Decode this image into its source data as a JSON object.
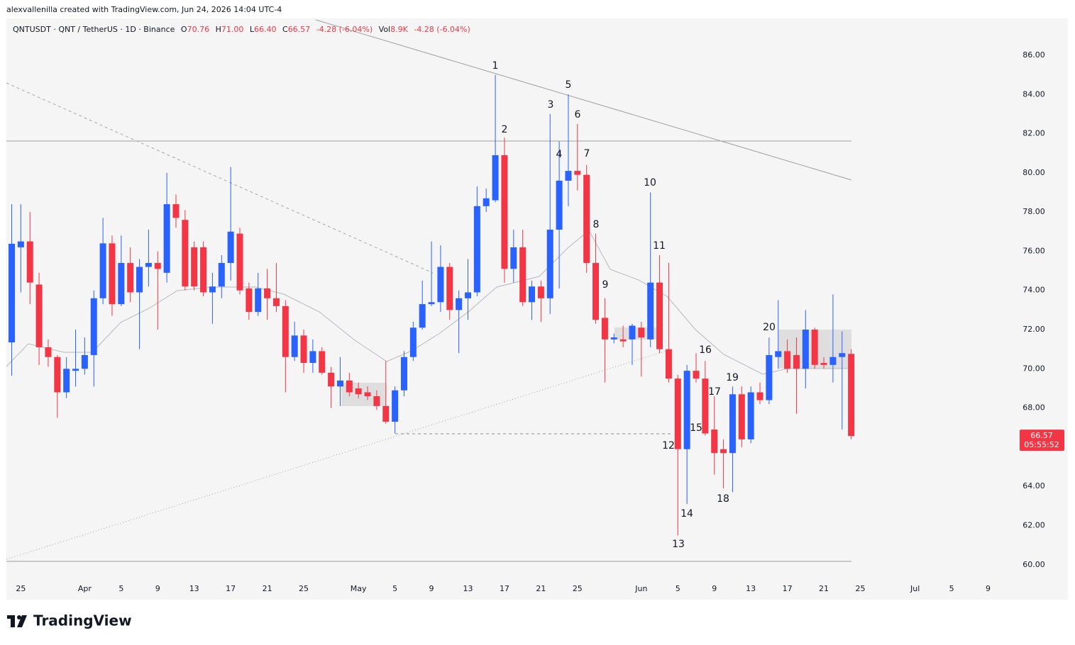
{
  "credit": "alexvallenilla created with TradingView.com, Jun 24, 2026 14:04 UTC-4",
  "brand": "TradingView",
  "chart_data": {
    "type": "candlestick",
    "legend": {
      "symbol": "QNTUSDT · QNT / TetherUS · 1D · Binance",
      "fields": [
        {
          "label": "O",
          "value": "70.76"
        },
        {
          "label": "H",
          "value": "71.00"
        },
        {
          "label": "L",
          "value": "66.40"
        },
        {
          "label": "C",
          "value": "66.57"
        }
      ],
      "change": "-4.28 (-6.04%)",
      "volume_label": "Vol",
      "volume": "8.9K",
      "volume_change": "-4.28 (-6.04%)"
    },
    "countdown": "05:55:52",
    "up_color": "#2962ff",
    "down_color": "#f23645",
    "categories": [
      null,
      "25",
      null,
      null,
      null,
      null,
      null,
      null,
      "Apr",
      null,
      null,
      null,
      "5",
      null,
      null,
      null,
      "9",
      null,
      null,
      null,
      "13",
      null,
      null,
      null,
      "17",
      null,
      null,
      null,
      "21",
      null,
      null,
      null,
      "25",
      null,
      null,
      null,
      null,
      null,
      "May",
      null,
      null,
      null,
      "5",
      null,
      null,
      null,
      "9",
      null,
      null,
      null,
      "13",
      null,
      null,
      null,
      "17",
      null,
      null,
      null,
      "21",
      null,
      null,
      null,
      "25",
      null,
      null,
      null,
      null,
      null,
      null,
      "Jun",
      null,
      null,
      null,
      "5",
      null,
      null,
      null,
      "9",
      null,
      null,
      null,
      "13",
      null,
      null,
      null,
      "17",
      null,
      null,
      null,
      "21",
      null,
      null,
      null,
      "25",
      null,
      null,
      null,
      null,
      null,
      "Jul",
      null,
      null,
      null,
      "5",
      null,
      null,
      null,
      "9"
    ],
    "open": [
      71.35,
      76.2,
      76.5,
      74.3,
      71.1,
      70.6,
      68.8,
      69.9,
      70.0,
      70.7,
      73.6,
      76.4,
      73.3,
      75.4,
      73.9,
      75.2,
      75.4,
      74.9,
      78.4,
      77.6,
      76.2,
      76.2,
      73.9,
      74.2,
      75.4,
      76.9,
      74.1,
      72.9,
      74.1,
      73.6,
      73.2,
      70.6,
      71.7,
      70.3,
      70.9,
      69.8,
      69.1,
      69.4,
      69.0,
      68.8,
      68.6,
      68.1,
      67.3,
      68.9,
      70.6,
      72.1,
      73.3,
      73.4,
      75.2,
      73.0,
      73.6,
      73.9,
      78.3,
      78.6,
      80.9,
      75.1,
      76.2,
      73.4,
      74.2,
      73.6,
      77.1,
      79.6,
      80.1,
      79.9,
      75.4,
      72.6,
      71.5,
      71.5,
      71.5,
      72.1,
      71.5,
      74.4,
      71.0,
      69.5,
      65.9,
      69.9,
      69.5,
      66.9,
      65.9,
      65.7,
      68.7,
      66.4,
      68.8,
      68.4,
      70.6,
      70.9,
      70.7,
      70.0,
      72.0,
      70.3,
      70.2,
      70.6,
      70.76,
      null,
      null,
      null,
      null,
      null,
      null,
      null,
      null,
      null,
      null,
      null,
      null,
      null,
      null,
      null
    ],
    "high": [
      78.4,
      78.4,
      78.0,
      74.9,
      71.5,
      70.7,
      70.6,
      72.0,
      71.6,
      74.0,
      77.7,
      76.8,
      76.8,
      76.2,
      75.6,
      77.1,
      76.0,
      80.0,
      78.9,
      78.1,
      76.5,
      76.5,
      74.9,
      75.8,
      80.3,
      77.2,
      74.4,
      74.9,
      75.1,
      75.4,
      73.5,
      72.4,
      72.0,
      71.5,
      71.1,
      70.1,
      70.6,
      69.8,
      69.3,
      69.1,
      68.9,
      70.4,
      69.1,
      70.9,
      72.4,
      74.5,
      76.5,
      76.3,
      75.4,
      74.0,
      75.6,
      79.3,
      79.2,
      85.0,
      81.8,
      77.1,
      77.1,
      74.5,
      74.5,
      83.0,
      81.6,
      84.0,
      82.5,
      80.4,
      76.9,
      73.6,
      71.8,
      72.2,
      72.3,
      72.4,
      79.0,
      75.8,
      75.4,
      69.7,
      70.2,
      70.8,
      70.4,
      68.6,
      66.4,
      69.1,
      69.1,
      69.1,
      69.3,
      71.6,
      73.5,
      71.5,
      71.6,
      73.0,
      72.1,
      70.6,
      73.8,
      71.9,
      71.0,
      null,
      null,
      null,
      null,
      null,
      null,
      null,
      null,
      null,
      null,
      null,
      null,
      null,
      null,
      null
    ],
    "low": [
      69.65,
      73.9,
      73.3,
      70.2,
      70.1,
      67.5,
      68.5,
      69.1,
      69.7,
      69.1,
      73.3,
      72.7,
      73.2,
      73.4,
      71.0,
      74.2,
      72.0,
      74.4,
      77.2,
      74.0,
      74.0,
      73.7,
      72.3,
      73.6,
      74.5,
      73.8,
      72.5,
      72.7,
      72.5,
      72.9,
      68.8,
      70.4,
      69.8,
      69.8,
      69.7,
      68.0,
      68.1,
      68.6,
      68.5,
      68.4,
      67.9,
      67.2,
      66.7,
      68.6,
      70.4,
      72.0,
      73.2,
      72.9,
      72.5,
      70.8,
      72.5,
      73.7,
      78.0,
      78.5,
      74.4,
      74.4,
      73.2,
      72.5,
      72.4,
      72.8,
      74.1,
      78.3,
      79.1,
      74.9,
      72.3,
      69.3,
      71.3,
      71.1,
      70.2,
      69.6,
      71.1,
      70.8,
      69.3,
      61.5,
      63.1,
      69.3,
      66.6,
      64.6,
      63.9,
      63.7,
      66.0,
      66.2,
      68.2,
      68.2,
      70.0,
      69.8,
      67.7,
      69.0,
      70.0,
      70.0,
      69.3,
      66.9,
      66.4,
      null,
      null,
      null,
      null,
      null,
      null,
      null,
      null,
      null,
      null,
      null,
      null,
      null,
      null,
      null
    ],
    "close": [
      76.38,
      76.5,
      74.4,
      71.1,
      70.6,
      68.8,
      70.0,
      70.0,
      70.7,
      73.6,
      76.4,
      73.3,
      75.4,
      73.9,
      75.2,
      75.4,
      75.1,
      78.4,
      77.7,
      74.2,
      74.2,
      73.9,
      74.2,
      75.4,
      77.0,
      74.0,
      72.9,
      74.1,
      73.6,
      73.2,
      70.6,
      71.7,
      70.3,
      70.9,
      69.8,
      69.1,
      69.4,
      68.8,
      68.7,
      68.6,
      68.1,
      67.3,
      68.9,
      70.6,
      72.1,
      73.3,
      73.4,
      75.2,
      73.0,
      73.6,
      73.9,
      78.3,
      78.7,
      80.9,
      75.1,
      76.2,
      73.4,
      74.2,
      73.6,
      77.1,
      79.6,
      80.1,
      79.9,
      75.4,
      72.5,
      71.5,
      71.6,
      71.4,
      72.2,
      71.6,
      74.4,
      71.0,
      69.5,
      65.9,
      69.9,
      69.5,
      66.7,
      65.7,
      65.7,
      68.7,
      66.4,
      68.8,
      68.4,
      70.7,
      70.9,
      70.0,
      70.0,
      72.0,
      70.2,
      70.2,
      70.6,
      70.8,
      66.57,
      null,
      null,
      null,
      null,
      null,
      null,
      null,
      null,
      null,
      null,
      null,
      null,
      null,
      null,
      null
    ],
    "ylim": [
      58.22,
      87.88
    ],
    "yticks": [
      {
        "value": 60,
        "label": "60.00"
      },
      {
        "value": 62,
        "label": "62.00"
      },
      {
        "value": 64,
        "label": "64.00"
      },
      {
        "value": 66,
        "label": "66.00"
      },
      {
        "value": 68,
        "label": "68.00"
      },
      {
        "value": 70,
        "label": "70.00"
      },
      {
        "value": 72,
        "label": "72.00"
      },
      {
        "value": 74,
        "label": "74.00"
      },
      {
        "value": 76,
        "label": "76.00"
      },
      {
        "value": 78,
        "label": "78.00"
      },
      {
        "value": 80,
        "label": "80.00"
      },
      {
        "value": 82,
        "label": "82.00"
      },
      {
        "value": 84,
        "label": "84.00"
      },
      {
        "value": 86,
        "label": "86.00"
      }
    ],
    "annotations": [
      "1",
      "2",
      "3",
      "4",
      "5",
      "6",
      "7",
      "8",
      "9",
      "10",
      "11",
      "12",
      "13",
      "14",
      "15",
      "16",
      "17",
      "18",
      "19",
      "20"
    ]
  }
}
